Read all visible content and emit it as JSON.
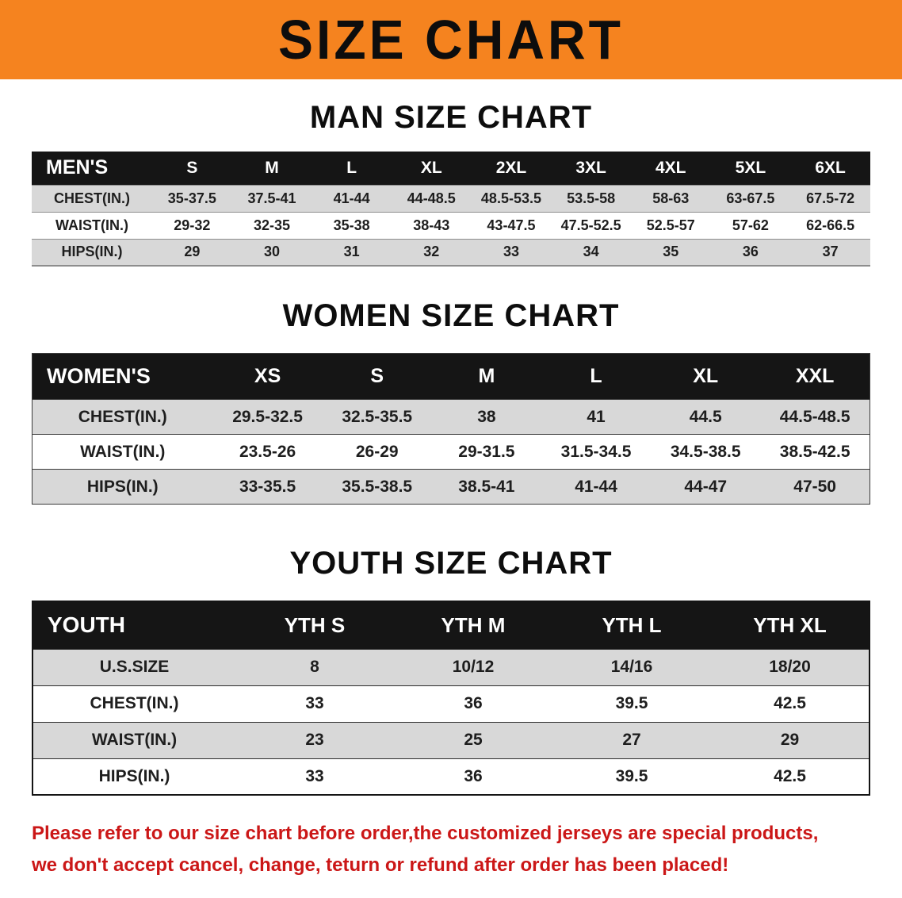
{
  "banner": {
    "title": "SIZE CHART",
    "bg_color": "#f5831f"
  },
  "chart_data": [
    {
      "type": "table",
      "title": "MAN SIZE CHART",
      "header_label": "MEN'S",
      "columns": [
        "S",
        "M",
        "L",
        "XL",
        "2XL",
        "3XL",
        "4XL",
        "5XL",
        "6XL"
      ],
      "rows": [
        {
          "label": "CHEST(IN.)",
          "values": [
            "35-37.5",
            "37.5-41",
            "41-44",
            "44-48.5",
            "48.5-53.5",
            "53.5-58",
            "58-63",
            "63-67.5",
            "67.5-72"
          ]
        },
        {
          "label": "WAIST(IN.)",
          "values": [
            "29-32",
            "32-35",
            "35-38",
            "38-43",
            "43-47.5",
            "47.5-52.5",
            "52.5-57",
            "57-62",
            "62-66.5"
          ]
        },
        {
          "label": "HIPS(IN.)",
          "values": [
            "29",
            "30",
            "31",
            "32",
            "33",
            "34",
            "35",
            "36",
            "37"
          ]
        }
      ]
    },
    {
      "type": "table",
      "title": "WOMEN SIZE CHART",
      "header_label": "WOMEN'S",
      "columns": [
        "XS",
        "S",
        "M",
        "L",
        "XL",
        "XXL"
      ],
      "rows": [
        {
          "label": "CHEST(IN.)",
          "values": [
            "29.5-32.5",
            "32.5-35.5",
            "38",
            "41",
            "44.5",
            "44.5-48.5"
          ]
        },
        {
          "label": "WAIST(IN.)",
          "values": [
            "23.5-26",
            "26-29",
            "29-31.5",
            "31.5-34.5",
            "34.5-38.5",
            "38.5-42.5"
          ]
        },
        {
          "label": "HIPS(IN.)",
          "values": [
            "33-35.5",
            "35.5-38.5",
            "38.5-41",
            "41-44",
            "44-47",
            "47-50"
          ]
        }
      ]
    },
    {
      "type": "table",
      "title": "YOUTH SIZE CHART",
      "header_label": "YOUTH",
      "columns": [
        "YTH S",
        "YTH M",
        "YTH L",
        "YTH XL"
      ],
      "rows": [
        {
          "label": "U.S.SIZE",
          "values": [
            "8",
            "10/12",
            "14/16",
            "18/20"
          ]
        },
        {
          "label": "CHEST(IN.)",
          "values": [
            "33",
            "36",
            "39.5",
            "42.5"
          ]
        },
        {
          "label": "WAIST(IN.)",
          "values": [
            "23",
            "25",
            "27",
            "29"
          ]
        },
        {
          "label": "HIPS(IN.)",
          "values": [
            "33",
            "36",
            "39.5",
            "42.5"
          ]
        }
      ]
    }
  ],
  "footer": {
    "color": "#cb1717",
    "lines": [
      "Please refer to our size chart before order,the customized jerseys are special products,",
      "we don't accept cancel, change, teturn or refund after order has been placed!"
    ]
  }
}
